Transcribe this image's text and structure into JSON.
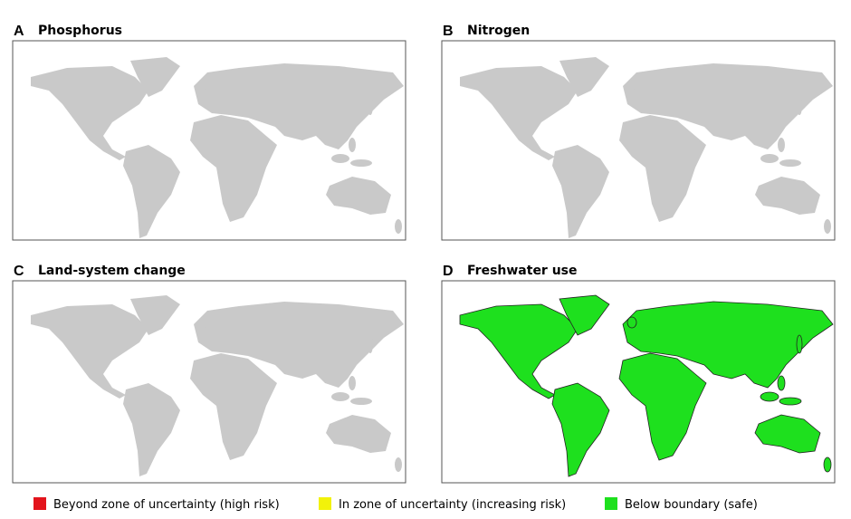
{
  "panels": [
    {
      "letter": "A",
      "title": "Phosphorus"
    },
    {
      "letter": "B",
      "title": "Nitrogen"
    },
    {
      "letter": "C",
      "title": "Land-system change"
    },
    {
      "letter": "D",
      "title": "Freshwater use"
    }
  ],
  "legend": [
    {
      "label": "Beyond zone of uncertainty (high risk)",
      "color": "#e3141c"
    },
    {
      "label": "In zone of uncertainty (increasing risk)",
      "color": "#f2f20a"
    },
    {
      "label": "Below boundary (safe)",
      "color": "#1ee01e"
    }
  ]
}
